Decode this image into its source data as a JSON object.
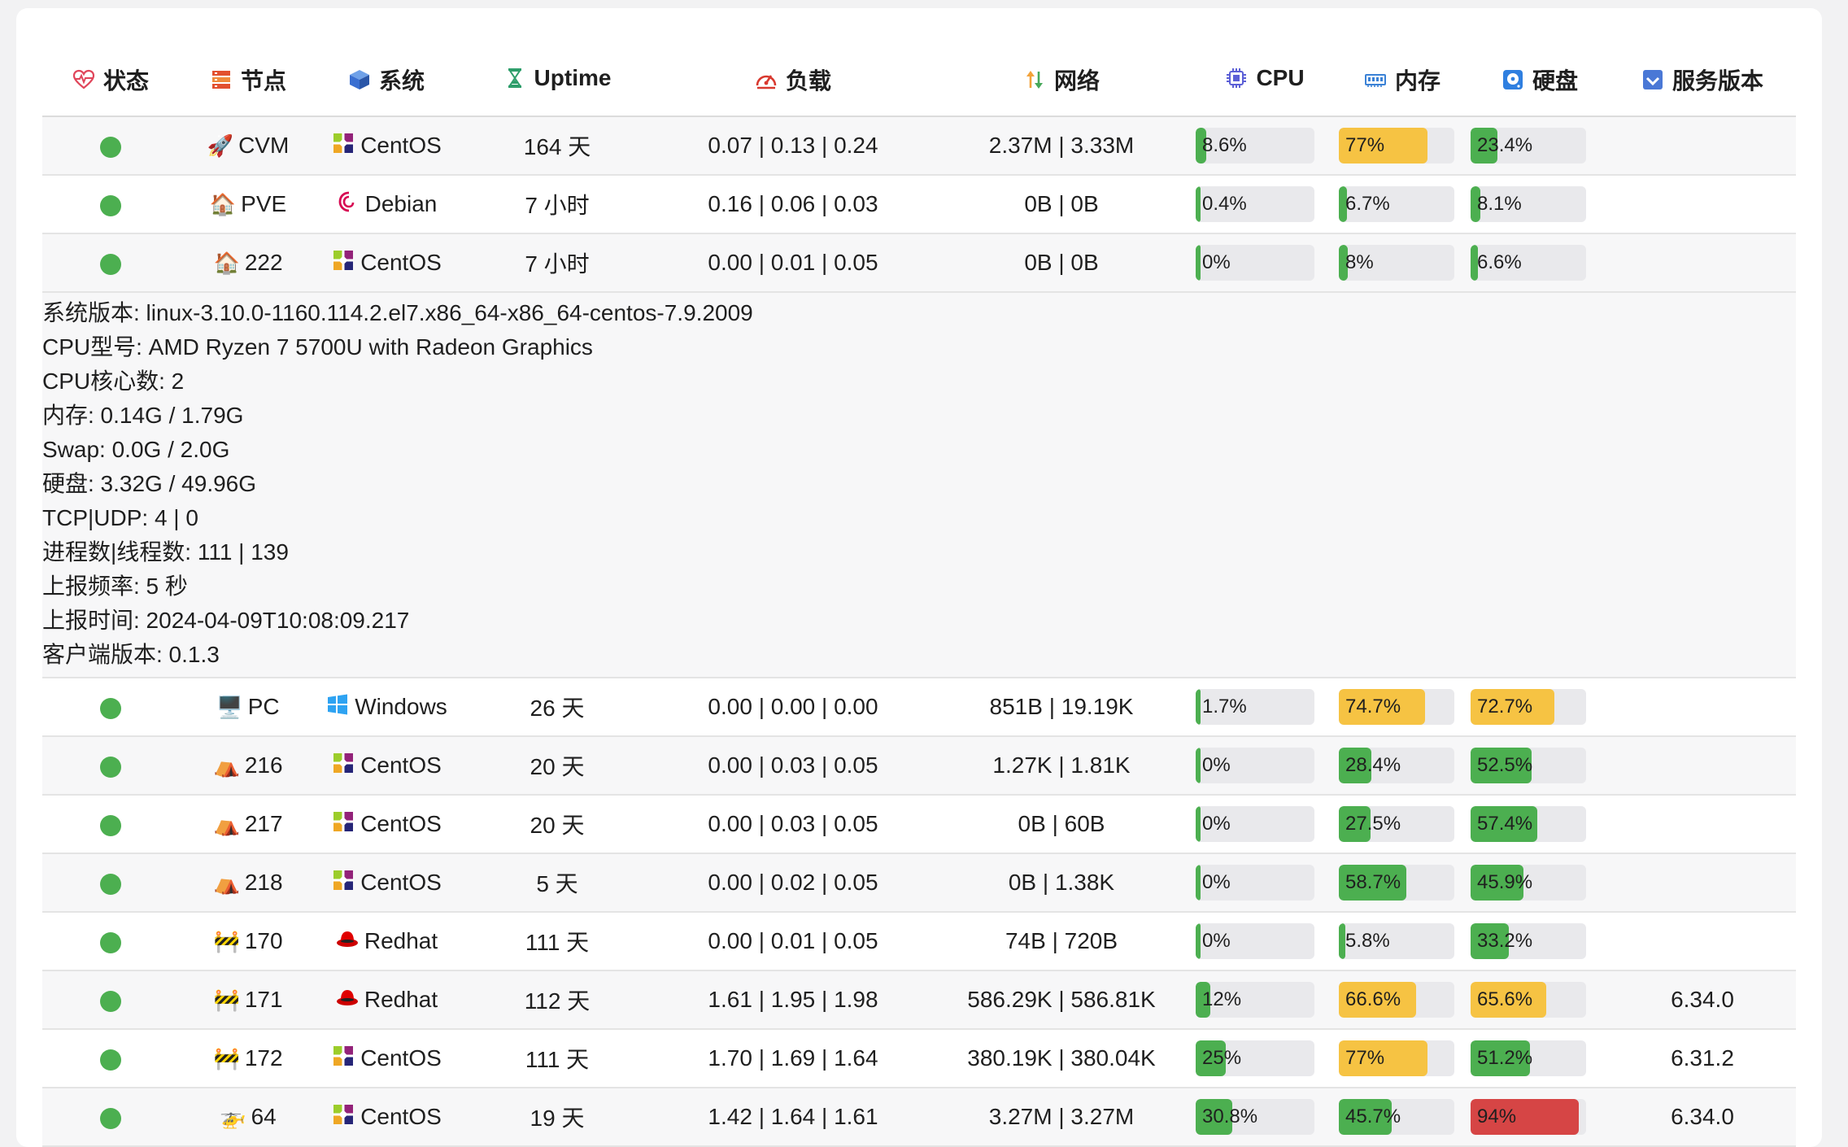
{
  "colors": {
    "green": "#4caf50",
    "yellow": "#f6c343",
    "red": "#d64545",
    "track": "#e9e9ec"
  },
  "headers": {
    "status": "状态",
    "node": "节点",
    "system": "系统",
    "uptime": "Uptime",
    "load": "负载",
    "network": "网络",
    "cpu": "CPU",
    "memory": "内存",
    "disk": "硬盘",
    "version": "服务版本"
  },
  "rows": [
    {
      "node_icon": "🚀",
      "node": "CVM",
      "os_icon": "centos-icon",
      "os": "CentOS",
      "uptime": "164 天",
      "load": "0.07 | 0.13 | 0.24",
      "network": "2.37M | 3.33M",
      "cpu": {
        "label": "8.6%",
        "pct": 8.6
      },
      "mem": {
        "label": "77%",
        "pct": 77
      },
      "disk": {
        "label": "23.4%",
        "pct": 23.4
      },
      "version": ""
    },
    {
      "node_icon": "🏠",
      "node": "PVE",
      "os_icon": "debian-icon",
      "os": "Debian",
      "uptime": "7 小时",
      "load": "0.16 | 0.06 | 0.03",
      "network": "0B | 0B",
      "cpu": {
        "label": "0.4%",
        "pct": 0.4
      },
      "mem": {
        "label": "6.7%",
        "pct": 6.7
      },
      "disk": {
        "label": "8.1%",
        "pct": 8.1
      },
      "version": ""
    },
    {
      "node_icon": "🏠",
      "node": "222",
      "os_icon": "centos-icon",
      "os": "CentOS",
      "uptime": "7 小时",
      "load": "0.00 | 0.01 | 0.05",
      "network": "0B | 0B",
      "cpu": {
        "label": "0%",
        "pct": 0
      },
      "mem": {
        "label": "8%",
        "pct": 8
      },
      "disk": {
        "label": "6.6%",
        "pct": 6.6
      },
      "version": ""
    },
    {
      "node_icon": "🖥️",
      "node": "PC",
      "os_icon": "windows-icon",
      "os": "Windows",
      "uptime": "26 天",
      "load": "0.00 | 0.00 | 0.00",
      "network": "851B | 19.19K",
      "cpu": {
        "label": "1.7%",
        "pct": 1.7
      },
      "mem": {
        "label": "74.7%",
        "pct": 74.7
      },
      "disk": {
        "label": "72.7%",
        "pct": 72.7
      },
      "version": ""
    },
    {
      "node_icon": "⛺",
      "node": "216",
      "os_icon": "centos-icon",
      "os": "CentOS",
      "uptime": "20 天",
      "load": "0.00 | 0.03 | 0.05",
      "network": "1.27K | 1.81K",
      "cpu": {
        "label": "0%",
        "pct": 0
      },
      "mem": {
        "label": "28.4%",
        "pct": 28.4
      },
      "disk": {
        "label": "52.5%",
        "pct": 52.5
      },
      "version": ""
    },
    {
      "node_icon": "⛺",
      "node": "217",
      "os_icon": "centos-icon",
      "os": "CentOS",
      "uptime": "20 天",
      "load": "0.00 | 0.03 | 0.05",
      "network": "0B | 60B",
      "cpu": {
        "label": "0%",
        "pct": 0
      },
      "mem": {
        "label": "27.5%",
        "pct": 27.5
      },
      "disk": {
        "label": "57.4%",
        "pct": 57.4
      },
      "version": ""
    },
    {
      "node_icon": "⛺",
      "node": "218",
      "os_icon": "centos-icon",
      "os": "CentOS",
      "uptime": "5 天",
      "load": "0.00 | 0.02 | 0.05",
      "network": "0B | 1.38K",
      "cpu": {
        "label": "0%",
        "pct": 0
      },
      "mem": {
        "label": "58.7%",
        "pct": 58.7
      },
      "disk": {
        "label": "45.9%",
        "pct": 45.9
      },
      "version": ""
    },
    {
      "node_icon": "🚧",
      "node": "170",
      "os_icon": "redhat-icon",
      "os": "Redhat",
      "uptime": "111 天",
      "load": "0.00 | 0.01 | 0.05",
      "network": "74B | 720B",
      "cpu": {
        "label": "0%",
        "pct": 0
      },
      "mem": {
        "label": "5.8%",
        "pct": 5.8
      },
      "disk": {
        "label": "33.2%",
        "pct": 33.2
      },
      "version": ""
    },
    {
      "node_icon": "🚧",
      "node": "171",
      "os_icon": "redhat-icon",
      "os": "Redhat",
      "uptime": "112 天",
      "load": "1.61 | 1.95 | 1.98",
      "network": "586.29K | 586.81K",
      "cpu": {
        "label": "12%",
        "pct": 12
      },
      "mem": {
        "label": "66.6%",
        "pct": 66.6
      },
      "disk": {
        "label": "65.6%",
        "pct": 65.6
      },
      "version": "6.34.0"
    },
    {
      "node_icon": "🚧",
      "node": "172",
      "os_icon": "centos-icon",
      "os": "CentOS",
      "uptime": "111 天",
      "load": "1.70 | 1.69 | 1.64",
      "network": "380.19K | 380.04K",
      "cpu": {
        "label": "25%",
        "pct": 25
      },
      "mem": {
        "label": "77%",
        "pct": 77
      },
      "disk": {
        "label": "51.2%",
        "pct": 51.2
      },
      "version": "6.31.2"
    },
    {
      "node_icon": "🚁",
      "node": "64",
      "os_icon": "centos-icon",
      "os": "CentOS",
      "uptime": "19 天",
      "load": "1.42 | 1.64 | 1.61",
      "network": "3.27M | 3.27M",
      "cpu": {
        "label": "30.8%",
        "pct": 30.8
      },
      "mem": {
        "label": "45.7%",
        "pct": 45.7
      },
      "disk": {
        "label": "94%",
        "pct": 94
      },
      "version": "6.34.0"
    }
  ],
  "detail": {
    "after_row": 2,
    "lines": [
      "系统版本: linux-3.10.0-1160.114.2.el7.x86_64-x86_64-centos-7.9.2009",
      "CPU型号: AMD Ryzen 7 5700U with Radeon Graphics",
      "CPU核心数: 2",
      "内存: 0.14G / 1.79G",
      "Swap: 0.0G / 2.0G",
      "硬盘: 3.32G / 49.96G",
      "TCP|UDP: 4 | 0",
      "进程数|线程数: 111 | 139",
      "上报频率: 5 秒",
      "上报时间: 2024-04-09T10:08:09.217",
      "客户端版本: 0.1.3"
    ]
  }
}
